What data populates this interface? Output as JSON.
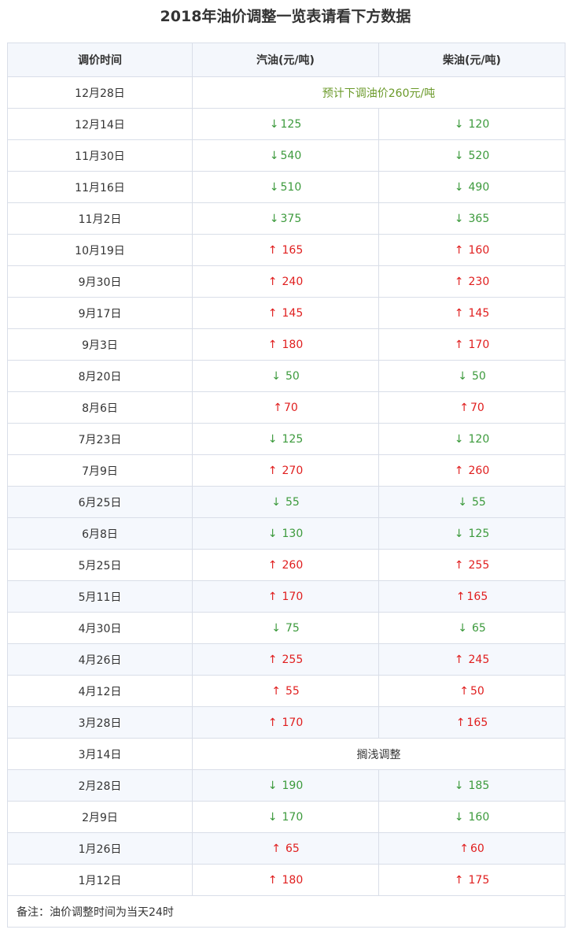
{
  "title": "2018年油价调整一览表请看下方数据",
  "headers": [
    "调价时间",
    "汽油(元/吨)",
    "柴油(元/吨)"
  ],
  "colors": {
    "down": "#3c9a3c",
    "up": "#e01e1e",
    "note": "#6b9a2a"
  },
  "rows": [
    {
      "date": "12月28日",
      "note": "预计下调油价260元/吨",
      "note_color": "note"
    },
    {
      "date": "12月14日",
      "gas": {
        "dir": "down",
        "arrow": "↓",
        "value": "125",
        "spaced": false
      },
      "diesel": {
        "dir": "down",
        "arrow": "↓",
        "value": "120",
        "spaced": true
      }
    },
    {
      "date": "11月30日",
      "gas": {
        "dir": "down",
        "arrow": "↓",
        "value": "540",
        "spaced": false
      },
      "diesel": {
        "dir": "down",
        "arrow": "↓",
        "value": "520",
        "spaced": true
      }
    },
    {
      "date": "11月16日",
      "gas": {
        "dir": "down",
        "arrow": "↓",
        "value": "510",
        "spaced": false
      },
      "diesel": {
        "dir": "down",
        "arrow": "↓",
        "value": "490",
        "spaced": true
      }
    },
    {
      "date": "11月2日",
      "gas": {
        "dir": "down",
        "arrow": "↓",
        "value": "375",
        "spaced": false
      },
      "diesel": {
        "dir": "down",
        "arrow": "↓",
        "value": "365",
        "spaced": true
      }
    },
    {
      "date": "10月19日",
      "gas": {
        "dir": "up",
        "arrow": "↑",
        "value": "165",
        "spaced": true
      },
      "diesel": {
        "dir": "up",
        "arrow": "↑",
        "value": "160",
        "spaced": true
      }
    },
    {
      "date": "9月30日",
      "gas": {
        "dir": "up",
        "arrow": "↑",
        "value": "240",
        "spaced": true
      },
      "diesel": {
        "dir": "up",
        "arrow": "↑",
        "value": "230",
        "spaced": true
      }
    },
    {
      "date": "9月17日",
      "gas": {
        "dir": "up",
        "arrow": "↑",
        "value": "145",
        "spaced": true
      },
      "diesel": {
        "dir": "up",
        "arrow": "↑",
        "value": "145",
        "spaced": true
      }
    },
    {
      "date": "9月3日",
      "gas": {
        "dir": "up",
        "arrow": "↑",
        "value": "180",
        "spaced": true
      },
      "diesel": {
        "dir": "up",
        "arrow": "↑",
        "value": "170",
        "spaced": true
      }
    },
    {
      "date": "8月20日",
      "gas": {
        "dir": "down",
        "arrow": "↓",
        "value": "50",
        "spaced": true
      },
      "diesel": {
        "dir": "down",
        "arrow": "↓",
        "value": "50",
        "spaced": true
      }
    },
    {
      "date": "8月6日",
      "gas": {
        "dir": "up",
        "arrow": "↑",
        "value": "70",
        "spaced": false
      },
      "diesel": {
        "dir": "up",
        "arrow": "↑",
        "value": "70",
        "spaced": false
      }
    },
    {
      "date": "7月23日",
      "gas": {
        "dir": "down",
        "arrow": "↓",
        "value": "125",
        "spaced": true
      },
      "diesel": {
        "dir": "down",
        "arrow": "↓",
        "value": "120",
        "spaced": true
      }
    },
    {
      "date": "7月9日",
      "gas": {
        "dir": "up",
        "arrow": "↑",
        "value": "270",
        "spaced": true
      },
      "diesel": {
        "dir": "up",
        "arrow": "↑",
        "value": "260",
        "spaced": true
      }
    },
    {
      "date": "6月25日",
      "gas": {
        "dir": "down",
        "arrow": "↓",
        "value": "55",
        "spaced": true
      },
      "diesel": {
        "dir": "down",
        "arrow": "↓",
        "value": "55",
        "spaced": true
      },
      "alt": true
    },
    {
      "date": "6月8日",
      "gas": {
        "dir": "down",
        "arrow": "↓",
        "value": "130",
        "spaced": true
      },
      "diesel": {
        "dir": "down",
        "arrow": "↓",
        "value": "125",
        "spaced": true
      },
      "alt": true
    },
    {
      "date": "5月25日",
      "gas": {
        "dir": "up",
        "arrow": "↑",
        "value": "260",
        "spaced": true
      },
      "diesel": {
        "dir": "up",
        "arrow": "↑",
        "value": "255",
        "spaced": true
      }
    },
    {
      "date": "5月11日",
      "gas": {
        "dir": "up",
        "arrow": "↑",
        "value": "170",
        "spaced": true
      },
      "diesel": {
        "dir": "up",
        "arrow": "↑",
        "value": "165",
        "spaced": false
      },
      "alt": true
    },
    {
      "date": "4月30日",
      "gas": {
        "dir": "down",
        "arrow": "↓",
        "value": "75",
        "spaced": true
      },
      "diesel": {
        "dir": "down",
        "arrow": "↓",
        "value": "65",
        "spaced": true
      }
    },
    {
      "date": "4月26日",
      "gas": {
        "dir": "up",
        "arrow": "↑",
        "value": "255",
        "spaced": true
      },
      "diesel": {
        "dir": "up",
        "arrow": "↑",
        "value": "245",
        "spaced": true
      },
      "alt": true
    },
    {
      "date": "4月12日",
      "gas": {
        "dir": "up",
        "arrow": "↑",
        "value": "55",
        "spaced": true
      },
      "diesel": {
        "dir": "up",
        "arrow": "↑",
        "value": "50",
        "spaced": false
      }
    },
    {
      "date": "3月28日",
      "gas": {
        "dir": "up",
        "arrow": "↑",
        "value": "170",
        "spaced": true
      },
      "diesel": {
        "dir": "up",
        "arrow": "↑",
        "value": "165",
        "spaced": false
      },
      "alt": true
    },
    {
      "date": "3月14日",
      "note": "搁浅调整",
      "note_color": "plain"
    },
    {
      "date": "2月28日",
      "gas": {
        "dir": "down",
        "arrow": "↓",
        "value": "190",
        "spaced": true
      },
      "diesel": {
        "dir": "down",
        "arrow": "↓",
        "value": "185",
        "spaced": true
      },
      "alt": true
    },
    {
      "date": "2月9日",
      "gas": {
        "dir": "down",
        "arrow": "↓",
        "value": "170",
        "spaced": true
      },
      "diesel": {
        "dir": "down",
        "arrow": "↓",
        "value": "160",
        "spaced": true
      }
    },
    {
      "date": "1月26日",
      "gas": {
        "dir": "up",
        "arrow": "↑",
        "value": "65",
        "spaced": true
      },
      "diesel": {
        "dir": "up",
        "arrow": "↑",
        "value": "60",
        "spaced": false
      },
      "alt": true
    },
    {
      "date": "1月12日",
      "gas": {
        "dir": "up",
        "arrow": "↑",
        "value": "180",
        "spaced": true
      },
      "diesel": {
        "dir": "up",
        "arrow": "↑",
        "value": "175",
        "spaced": true
      }
    }
  ],
  "remark": "备注：油价调整时间为当天24时"
}
